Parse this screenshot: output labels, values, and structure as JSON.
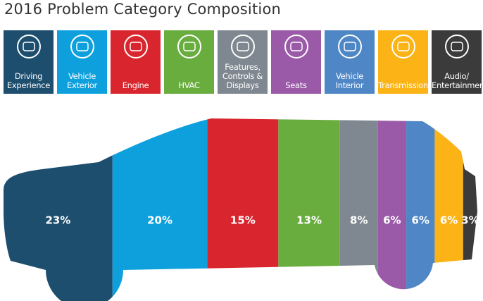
{
  "chart_data": {
    "type": "composition",
    "title": "2016 Problem Category Composition",
    "categories": [
      "Driving Experience",
      "Vehicle Exterior",
      "Engine",
      "HVAC",
      "Features, Controls & Displays",
      "Seats",
      "Vehicle Interior",
      "Transmission",
      "Audio/ Entertainment"
    ],
    "values": [
      23,
      20,
      15,
      13,
      8,
      6,
      6,
      6,
      3
    ],
    "value_labels": [
      "23%",
      "20%",
      "15%",
      "13%",
      "8%",
      "6%",
      "6%",
      "6%",
      "3%"
    ],
    "colors": [
      "#1d4e6e",
      "#0ea0dc",
      "#d9262e",
      "#6aad3f",
      "#7f8890",
      "#9b5aa8",
      "#4f86c6",
      "#fbb316",
      "#3b3b3b"
    ]
  }
}
